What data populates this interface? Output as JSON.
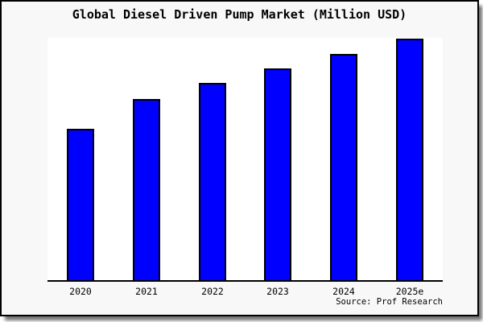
{
  "title": "Global Diesel Driven Pump Market (Million USD)",
  "source_credit": "Source: Prof Research",
  "colors": {
    "bar_fill": "#0000ff",
    "bar_border": "#000000",
    "axis": "#000000",
    "figure_background": "#f8f8f8",
    "plot_background": "#ffffff",
    "text": "#000000"
  },
  "chart_data": {
    "type": "bar",
    "title": "Global Diesel Driven Pump Market (Million USD)",
    "categories": [
      "2020",
      "2021",
      "2022",
      "2023",
      "2024",
      "2025e"
    ],
    "values": [
      62.6,
      75.1,
      81.5,
      87.8,
      93.8,
      100
    ],
    "xlabel": "",
    "ylabel": "",
    "ylim": [
      0,
      101
    ],
    "value_scale_note": "no numeric y-axis shown; values estimated as percent of 2025e bar",
    "grid": false,
    "legend_position": "none",
    "y_axis": "hidden",
    "annotations": [
      "Source: Prof Research"
    ]
  }
}
